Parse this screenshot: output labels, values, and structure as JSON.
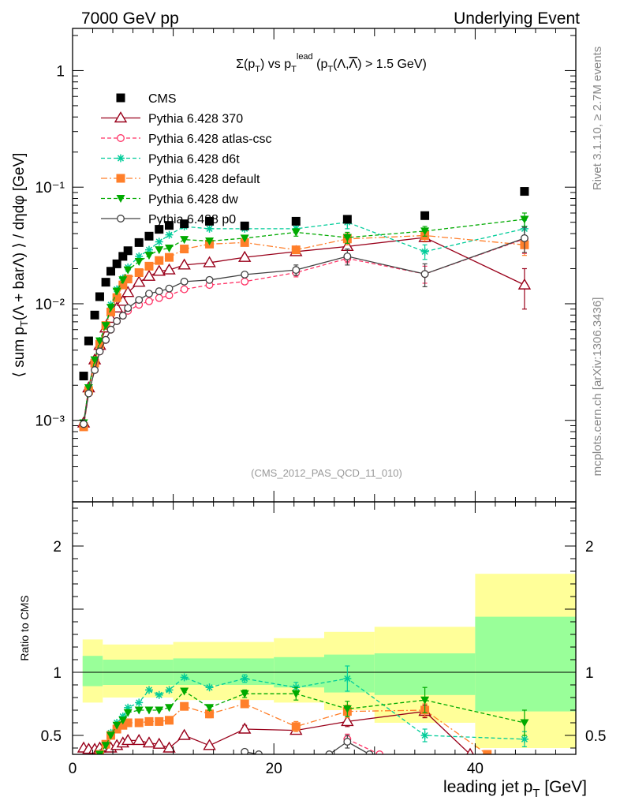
{
  "header": {
    "left": "7000 GeV pp",
    "right": "Underlying Event"
  },
  "side_labels": {
    "rivet": "Rivet 3.1.10, ≥ 2.7M events",
    "mcplots": "mcplots.cern.ch [arXiv:1306.3436]"
  },
  "colors": {
    "cms": "#000000",
    "p370": "#99001a",
    "atlas": "#ff3366",
    "d6t": "#00cc99",
    "default": "#ff7f2a",
    "dw": "#00aa00",
    "p0": "#404040",
    "band_inner": "#99ff99",
    "band_outer": "#ffff99"
  },
  "chart_data": [
    {
      "type": "scatter",
      "title": "Σ(p_T) vs p_T^lead (p_T(Λ,Λ̅) > 1.5 GeV)",
      "ylabel": "⟨ sum p_T(Λ + barΛ) ⟩ / dηdφ [GeV]",
      "yscale": "log",
      "ylim": [
        0.0002,
        2.3
      ],
      "xlim": [
        0,
        50
      ],
      "yticks": [
        {
          "value": 0.001,
          "label": "10⁻³"
        },
        {
          "value": 0.01,
          "label": "10⁻²"
        },
        {
          "value": 0.1,
          "label": "10⁻¹"
        },
        {
          "value": 1,
          "label": "1"
        }
      ],
      "annotation": "(CMS_2012_PAS_QCD_11_010)",
      "legend_position": "top-left",
      "series": [
        {
          "name": "CMS",
          "key": "cms",
          "marker": "square",
          "line": "none",
          "x": [
            1.1,
            1.6,
            2.2,
            2.7,
            3.3,
            3.8,
            4.4,
            5.0,
            5.5,
            6.6,
            7.6,
            8.6,
            9.6,
            11.1,
            13.6,
            17.1,
            22.2,
            27.3,
            35.0,
            44.9
          ],
          "y": [
            0.0024,
            0.0048,
            0.008,
            0.0115,
            0.0153,
            0.019,
            0.022,
            0.0255,
            0.0285,
            0.0335,
            0.038,
            0.0435,
            0.047,
            0.0485,
            0.051,
            0.0465,
            0.051,
            0.053,
            0.057,
            0.092
          ]
        },
        {
          "name": "Pythia 6.428 370",
          "key": "p370",
          "marker": "triangle",
          "line": "solid",
          "x": [
            1.1,
            1.6,
            2.2,
            2.7,
            3.3,
            3.8,
            4.4,
            5.0,
            5.5,
            6.6,
            7.6,
            8.6,
            9.6,
            11.1,
            13.6,
            17.1,
            22.2,
            27.3,
            35.0,
            44.9
          ],
          "y": [
            0.00095,
            0.0019,
            0.0033,
            0.0044,
            0.0062,
            0.0075,
            0.0092,
            0.0105,
            0.0125,
            0.0153,
            0.0172,
            0.019,
            0.0195,
            0.0215,
            0.0225,
            0.025,
            0.028,
            0.031,
            0.037,
            0.0145
          ],
          "err": [
            0,
            0,
            0,
            0,
            0,
            0,
            0,
            0,
            0,
            0,
            0,
            0,
            0,
            0,
            0,
            0,
            0.0015,
            0.002,
            0.003,
            0.0055
          ]
        },
        {
          "name": "Pythia 6.428 atlas-csc",
          "key": "atlas",
          "marker": "circle",
          "line": "dashed",
          "x": [
            1.1,
            1.6,
            2.2,
            2.7,
            3.3,
            3.8,
            4.4,
            5.0,
            5.5,
            6.6,
            7.6,
            8.6,
            9.6,
            11.1,
            13.6,
            17.1,
            22.2,
            27.3,
            35.0,
            44.9
          ],
          "y": [
            0.00088,
            0.0017,
            0.0027,
            0.0039,
            0.0049,
            0.006,
            0.0071,
            0.0079,
            0.0087,
            0.0098,
            0.0105,
            0.0112,
            0.0118,
            0.0133,
            0.0145,
            0.0155,
            0.0185,
            0.0245,
            0.018,
            0.036
          ],
          "err": [
            0,
            0,
            0,
            0,
            0,
            0,
            0,
            0,
            0,
            0,
            0,
            0,
            0,
            0,
            0,
            0,
            0.0015,
            0.002,
            0.003,
            0.009
          ]
        },
        {
          "name": "Pythia 6.428 d6t",
          "key": "d6t",
          "marker": "star",
          "line": "dashed",
          "x": [
            1.1,
            1.6,
            2.2,
            2.7,
            3.3,
            3.8,
            4.4,
            5.0,
            5.5,
            6.6,
            7.6,
            8.6,
            9.6,
            11.1,
            13.6,
            17.1,
            22.2,
            27.3,
            35.0,
            44.9
          ],
          "y": [
            0.00095,
            0.0019,
            0.0032,
            0.0048,
            0.0065,
            0.0098,
            0.0133,
            0.0165,
            0.0205,
            0.0255,
            0.029,
            0.034,
            0.039,
            0.046,
            0.044,
            0.044,
            0.044,
            0.05,
            0.028,
            0.044
          ],
          "err": [
            0,
            0,
            0,
            0,
            0,
            0,
            0,
            0,
            0,
            0,
            0,
            0,
            0,
            0,
            0,
            0,
            0.002,
            0.006,
            0.004,
            0.008
          ]
        },
        {
          "name": "Pythia 6.428 default",
          "key": "default",
          "marker": "square",
          "line": "dashdot",
          "x": [
            1.1,
            1.6,
            2.2,
            2.7,
            3.3,
            3.8,
            4.4,
            5.0,
            5.5,
            6.6,
            7.6,
            8.6,
            9.6,
            11.1,
            13.6,
            17.1,
            22.2,
            27.3,
            35.0,
            44.9
          ],
          "y": [
            0.00088,
            0.0018,
            0.0031,
            0.0045,
            0.0065,
            0.0085,
            0.0113,
            0.0145,
            0.0163,
            0.0185,
            0.021,
            0.0235,
            0.025,
            0.0295,
            0.0325,
            0.0335,
            0.029,
            0.036,
            0.0385,
            0.032
          ],
          "err": [
            0,
            0,
            0,
            0,
            0,
            0,
            0,
            0,
            0,
            0,
            0,
            0,
            0,
            0,
            0,
            0,
            0.002,
            0.004,
            0.004,
            0.006
          ]
        },
        {
          "name": "Pythia 6.428 dw",
          "key": "dw",
          "marker": "triangle-down",
          "line": "dashed",
          "x": [
            1.1,
            1.6,
            2.2,
            2.7,
            3.3,
            3.8,
            4.4,
            5.0,
            5.5,
            6.6,
            7.6,
            8.6,
            9.6,
            11.1,
            13.6,
            17.1,
            22.2,
            27.3,
            35.0,
            44.9
          ],
          "y": [
            0.00095,
            0.0019,
            0.0033,
            0.0048,
            0.0065,
            0.0093,
            0.0128,
            0.016,
            0.0195,
            0.023,
            0.026,
            0.029,
            0.03,
            0.0355,
            0.0345,
            0.0365,
            0.041,
            0.037,
            0.042,
            0.053
          ],
          "err": [
            0,
            0,
            0,
            0,
            0,
            0,
            0,
            0,
            0,
            0,
            0,
            0,
            0,
            0,
            0,
            0,
            0.003,
            0.004,
            0.004,
            0.007
          ]
        },
        {
          "name": "Pythia 6.428 p0",
          "key": "p0",
          "marker": "circle",
          "line": "solid",
          "x": [
            1.1,
            1.6,
            2.2,
            2.7,
            3.3,
            3.8,
            4.4,
            5.0,
            5.5,
            6.6,
            7.6,
            8.6,
            9.6,
            11.1,
            13.6,
            17.1,
            22.2,
            27.3,
            35.0,
            44.9
          ],
          "y": [
            0.00093,
            0.0017,
            0.0027,
            0.0039,
            0.0049,
            0.006,
            0.0071,
            0.0079,
            0.0092,
            0.0108,
            0.0122,
            0.0128,
            0.0135,
            0.0155,
            0.016,
            0.0178,
            0.0195,
            0.0255,
            0.018,
            0.0365
          ],
          "err": [
            0,
            0,
            0,
            0,
            0,
            0,
            0,
            0,
            0,
            0,
            0,
            0,
            0,
            0,
            0,
            0,
            0.002,
            0.004,
            0.004,
            0.009
          ]
        }
      ]
    },
    {
      "type": "scatter",
      "ylabel": "Ratio to CMS",
      "xlabel": "leading jet p_T [GeV]",
      "xlim": [
        0,
        50
      ],
      "ylim": [
        0.35,
        2.35
      ],
      "xticks": [
        0,
        20,
        40
      ],
      "yticks": [
        0.5,
        1,
        2
      ],
      "bands": {
        "edges": [
          1,
          3,
          10,
          20,
          25,
          30,
          40,
          50
        ],
        "inner_low": [
          0.89,
          0.9,
          0.9,
          0.88,
          0.84,
          0.82,
          0.69
        ],
        "inner_high": [
          1.13,
          1.1,
          1.11,
          1.12,
          1.14,
          1.15,
          1.44
        ],
        "outer_low": [
          0.76,
          0.8,
          0.78,
          0.76,
          0.7,
          0.6,
          0.4
        ],
        "outer_high": [
          1.26,
          1.22,
          1.24,
          1.27,
          1.32,
          1.36,
          1.78
        ]
      },
      "series": [
        {
          "name": "Pythia 6.428 370",
          "key": "p370",
          "marker": "triangle",
          "line": "solid",
          "x": [
            1.1,
            1.6,
            2.2,
            2.7,
            3.3,
            3.8,
            4.4,
            5.0,
            5.5,
            6.6,
            7.6,
            8.6,
            9.6,
            11.1,
            13.6,
            17.1,
            22.2,
            27.3,
            35.0,
            39.5
          ],
          "y": [
            0.4,
            0.39,
            0.39,
            0.4,
            0.41,
            0.4,
            0.42,
            0.44,
            0.46,
            0.46,
            0.44,
            0.43,
            0.4,
            0.5,
            0.42,
            0.55,
            0.54,
            0.61,
            0.69,
            0.35
          ],
          "err": [
            0,
            0,
            0,
            0,
            0,
            0,
            0,
            0,
            0,
            0,
            0,
            0,
            0,
            0.02,
            0.02,
            0.03,
            0.03,
            0.04,
            0.05,
            0
          ]
        },
        {
          "name": "Pythia 6.428 atlas-csc",
          "key": "atlas",
          "marker": "circle",
          "line": "dashed",
          "x": [
            27.3,
            30.5
          ],
          "y": [
            0.47,
            0.35
          ],
          "err": [
            0.04,
            0
          ]
        },
        {
          "name": "Pythia 6.428 d6t",
          "key": "d6t",
          "marker": "star",
          "line": "dashed",
          "x": [
            2.7,
            3.3,
            3.8,
            4.4,
            5.0,
            5.5,
            6.6,
            7.6,
            8.6,
            9.6,
            11.1,
            13.6,
            17.1,
            22.2,
            27.3,
            35.0,
            44.9
          ],
          "y": [
            0.36,
            0.42,
            0.52,
            0.6,
            0.65,
            0.72,
            0.76,
            0.86,
            0.82,
            0.86,
            0.96,
            0.88,
            0.95,
            0.88,
            0.95,
            0.5,
            0.47
          ],
          "err": [
            0,
            0,
            0,
            0,
            0,
            0,
            0,
            0,
            0,
            0,
            0,
            0,
            0.03,
            0.04,
            0.1,
            0.05,
            0.06
          ]
        },
        {
          "name": "Pythia 6.428 default",
          "key": "default",
          "marker": "square",
          "line": "dashdot",
          "x": [
            2.7,
            3.3,
            3.8,
            4.4,
            5.0,
            5.5,
            6.6,
            7.6,
            8.6,
            9.6,
            11.1,
            13.6,
            17.1,
            22.2,
            27.3,
            35.0,
            41.2
          ],
          "y": [
            0.35,
            0.43,
            0.5,
            0.55,
            0.58,
            0.6,
            0.6,
            0.61,
            0.61,
            0.62,
            0.73,
            0.67,
            0.75,
            0.57,
            0.69,
            0.7,
            0.35
          ],
          "err": [
            0,
            0,
            0,
            0,
            0,
            0,
            0,
            0,
            0,
            0,
            0.02,
            0.03,
            0.03,
            0.04,
            0.05,
            0.05,
            0
          ]
        },
        {
          "name": "Pythia 6.428 dw",
          "key": "dw",
          "marker": "triangle-down",
          "line": "dashed",
          "x": [
            2.7,
            3.3,
            3.8,
            4.4,
            5.0,
            5.5,
            6.6,
            7.6,
            8.6,
            9.6,
            11.1,
            13.6,
            17.1,
            22.2,
            27.3,
            35.0,
            44.9
          ],
          "y": [
            0.35,
            0.42,
            0.5,
            0.58,
            0.62,
            0.68,
            0.7,
            0.7,
            0.7,
            0.72,
            0.85,
            0.72,
            0.83,
            0.83,
            0.71,
            0.78,
            0.6
          ],
          "err": [
            0,
            0,
            0,
            0,
            0,
            0,
            0,
            0,
            0,
            0,
            0,
            0.02,
            0.03,
            0.05,
            0.06,
            0.1,
            0.1
          ]
        },
        {
          "name": "Pythia 6.428 p0",
          "key": "p0",
          "marker": "circle",
          "line": "solid",
          "x": [
            17.1,
            18.5,
            25.5,
            27.3,
            29.5
          ],
          "y": [
            0.37,
            0.35,
            0.35,
            0.45,
            0.35
          ],
          "err": [
            0,
            0,
            0,
            0.05,
            0
          ]
        }
      ]
    }
  ]
}
